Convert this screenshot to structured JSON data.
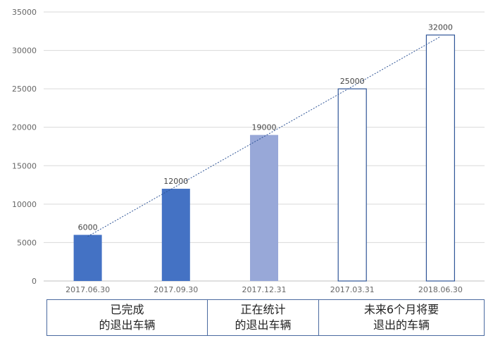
{
  "chart_data": {
    "type": "bar",
    "categories": [
      "2017.06.30",
      "2017.09.30",
      "2017.12.31",
      "2017.03.31",
      "2018.06.30"
    ],
    "values": [
      6000,
      12000,
      19000,
      25000,
      32000
    ],
    "data_labels": [
      "6000",
      "12000",
      "19000",
      "25000",
      "32000"
    ],
    "bar_styles": [
      "solid-dark",
      "solid-dark",
      "solid-light",
      "outline",
      "outline"
    ],
    "ylim": [
      0,
      35000
    ],
    "yticks": [
      0,
      5000,
      10000,
      15000,
      20000,
      25000,
      30000,
      35000
    ],
    "grid": true,
    "trendline": "linear-dotted",
    "colors": {
      "dark": "#4472c4",
      "light": "#98a8d8",
      "outline": "#2f5597",
      "grid": "#d9d9d9",
      "trend": "#2f5597"
    }
  },
  "groups": [
    {
      "line1": "已完成",
      "line2": "的退出车辆"
    },
    {
      "line1": "正在统计",
      "line2": "的退出车辆"
    },
    {
      "line1": "未来6个月将要",
      "line2": "退出的车辆"
    }
  ]
}
